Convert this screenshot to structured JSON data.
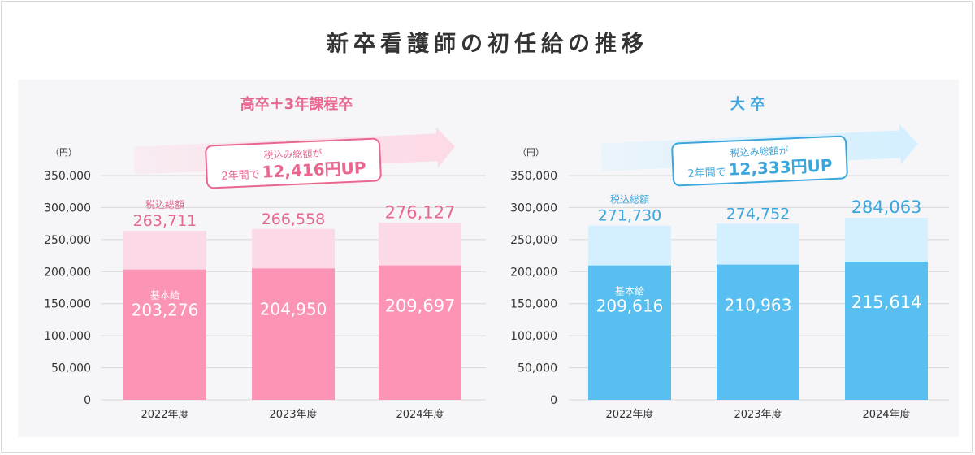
{
  "title": "新卒看護師の初任給の推移",
  "colors": {
    "pink_base": "#fc94b5",
    "pink_total": "#fcd9e6",
    "pink_text": "#e8678f",
    "blue_base": "#58bff0",
    "blue_total": "#d4efff",
    "blue_text": "#3aa6dc",
    "axis_text": "#333333",
    "grid": "#d8d8d8"
  },
  "chart_data": [
    {
      "type": "bar",
      "title": "高卒＋3年課程卒",
      "unit_label": "（円）",
      "categories": [
        "2022年度",
        "2023年度",
        "2024年度"
      ],
      "series": [
        {
          "name": "基本給",
          "values": [
            203276,
            204950,
            209697
          ]
        },
        {
          "name": "税込総額",
          "values": [
            263711,
            266558,
            276127
          ]
        }
      ],
      "value_labels_base": [
        "203,276",
        "204,950",
        "209,697"
      ],
      "value_labels_total": [
        "263,711",
        "266,558",
        "276,127"
      ],
      "series_label_base": "基本給",
      "series_label_total": "税込総額",
      "yticks": [
        "350,000",
        "300,000",
        "250,000",
        "200,000",
        "150,000",
        "100,000",
        "50,000",
        "0"
      ],
      "ylim": [
        0,
        350000
      ],
      "annotation": {
        "line1": "税込み総額が",
        "line2_prefix": "2年間で",
        "line2_value": "12,416円UP"
      }
    },
    {
      "type": "bar",
      "title": "大 卒",
      "unit_label": "（円）",
      "categories": [
        "2022年度",
        "2023年度",
        "2024年度"
      ],
      "series": [
        {
          "name": "基本給",
          "values": [
            209616,
            210963,
            215614
          ]
        },
        {
          "name": "税込総額",
          "values": [
            271730,
            274752,
            284063
          ]
        }
      ],
      "value_labels_base": [
        "209,616",
        "210,963",
        "215,614"
      ],
      "value_labels_total": [
        "271,730",
        "274,752",
        "284,063"
      ],
      "series_label_base": "基本給",
      "series_label_total": "税込総額",
      "yticks": [
        "350,000",
        "300,000",
        "250,000",
        "200,000",
        "150,000",
        "100,000",
        "50,000",
        "0"
      ],
      "ylim": [
        0,
        350000
      ],
      "annotation": {
        "line1": "税込み総額が",
        "line2_prefix": "2年間で",
        "line2_value": "12,333円UP"
      }
    }
  ]
}
